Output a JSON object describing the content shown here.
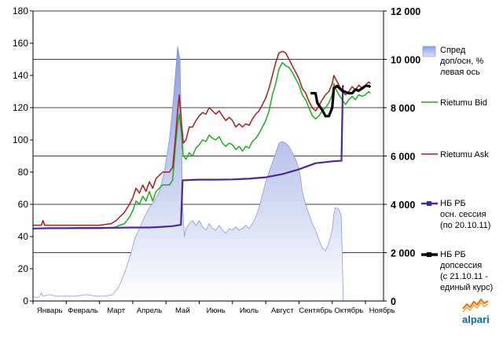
{
  "chart_data": {
    "type": "line",
    "title": "",
    "left_axis": {
      "range": [
        0,
        180
      ],
      "ticks": [
        0,
        20,
        40,
        60,
        80,
        100,
        120,
        140,
        160,
        180
      ]
    },
    "right_axis": {
      "range": [
        0,
        12000
      ],
      "ticks": [
        0,
        2000,
        4000,
        6000,
        8000,
        10000,
        12000
      ],
      "tick_labels": [
        "0",
        "2 000",
        "4 000",
        "6 000",
        "8 000",
        "10 000",
        "12 000"
      ]
    },
    "gridlines": "horizontal at right-axis ticks",
    "months": [
      "Январь",
      "Февраль",
      "Март",
      "Апрель",
      "Май",
      "Июнь",
      "Июль",
      "Август",
      "Сентябрь",
      "Октябрь",
      "Ноябрь"
    ],
    "legend_position": "right",
    "series": [
      {
        "name_lines": [
          "Спред",
          "доп/осн, %",
          "левая ось"
        ],
        "type": "area",
        "axis": "left",
        "color": "#a8b6e8",
        "points": [
          [
            0.0,
            3
          ],
          [
            0.1,
            2
          ],
          [
            0.2,
            3
          ],
          [
            0.25,
            5
          ],
          [
            0.3,
            3
          ],
          [
            0.5,
            4
          ],
          [
            0.7,
            3
          ],
          [
            1.0,
            3
          ],
          [
            1.3,
            3
          ],
          [
            1.6,
            4
          ],
          [
            1.9,
            3
          ],
          [
            2.2,
            3
          ],
          [
            2.4,
            4
          ],
          [
            2.55,
            8
          ],
          [
            2.65,
            12
          ],
          [
            2.8,
            20
          ],
          [
            2.95,
            30
          ],
          [
            3.05,
            38
          ],
          [
            3.2,
            45
          ],
          [
            3.35,
            52
          ],
          [
            3.5,
            58
          ],
          [
            3.65,
            62
          ],
          [
            3.8,
            68
          ],
          [
            3.95,
            80
          ],
          [
            4.1,
            100
          ],
          [
            4.2,
            120
          ],
          [
            4.3,
            145
          ],
          [
            4.35,
            158
          ],
          [
            4.42,
            150
          ],
          [
            4.47,
            100
          ],
          [
            4.5,
            60
          ],
          [
            4.55,
            40
          ],
          [
            4.6,
            45
          ],
          [
            4.7,
            48
          ],
          [
            4.8,
            50
          ],
          [
            4.9,
            47
          ],
          [
            5.0,
            50
          ],
          [
            5.1,
            46
          ],
          [
            5.2,
            44
          ],
          [
            5.3,
            48
          ],
          [
            5.4,
            45
          ],
          [
            5.5,
            44
          ],
          [
            5.6,
            47
          ],
          [
            5.7,
            44
          ],
          [
            5.8,
            42
          ],
          [
            5.9,
            45
          ],
          [
            6.0,
            44
          ],
          [
            6.1,
            46
          ],
          [
            6.2,
            44
          ],
          [
            6.3,
            45
          ],
          [
            6.4,
            47
          ],
          [
            6.5,
            45
          ],
          [
            6.6,
            48
          ],
          [
            6.7,
            52
          ],
          [
            6.8,
            58
          ],
          [
            6.9,
            66
          ],
          [
            7.0,
            74
          ],
          [
            7.1,
            80
          ],
          [
            7.2,
            86
          ],
          [
            7.3,
            92
          ],
          [
            7.4,
            98
          ],
          [
            7.5,
            99
          ],
          [
            7.6,
            98
          ],
          [
            7.7,
            96
          ],
          [
            7.8,
            92
          ],
          [
            7.9,
            88
          ],
          [
            8.0,
            82
          ],
          [
            8.05,
            76
          ],
          [
            8.1,
            68
          ],
          [
            8.2,
            60
          ],
          [
            8.3,
            54
          ],
          [
            8.4,
            48
          ],
          [
            8.5,
            44
          ],
          [
            8.6,
            38
          ],
          [
            8.7,
            33
          ],
          [
            8.8,
            31
          ],
          [
            8.9,
            36
          ],
          [
            9.0,
            44
          ],
          [
            9.05,
            54
          ],
          [
            9.1,
            58
          ],
          [
            9.2,
            57
          ],
          [
            9.27,
            53
          ],
          [
            9.3,
            30
          ],
          [
            9.33,
            0
          ]
        ]
      },
      {
        "name": "Rietumu Bid",
        "type": "line",
        "axis": "left",
        "color": "#22aa22",
        "points": [
          [
            0.0,
            45
          ],
          [
            1.0,
            45
          ],
          [
            2.0,
            45
          ],
          [
            2.35,
            45.5
          ],
          [
            2.5,
            46
          ],
          [
            2.6,
            47
          ],
          [
            2.75,
            48
          ],
          [
            2.9,
            52
          ],
          [
            3.0,
            56
          ],
          [
            3.1,
            62
          ],
          [
            3.2,
            60
          ],
          [
            3.3,
            65
          ],
          [
            3.4,
            62
          ],
          [
            3.5,
            68
          ],
          [
            3.6,
            62
          ],
          [
            3.7,
            68
          ],
          [
            3.8,
            70
          ],
          [
            3.9,
            72
          ],
          [
            4.0,
            72
          ],
          [
            4.1,
            72
          ],
          [
            4.2,
            75
          ],
          [
            4.28,
            95
          ],
          [
            4.35,
            110
          ],
          [
            4.4,
            116
          ],
          [
            4.46,
            105
          ],
          [
            4.52,
            90
          ],
          [
            4.6,
            88
          ],
          [
            4.7,
            92
          ],
          [
            4.8,
            90
          ],
          [
            4.9,
            95
          ],
          [
            5.0,
            97
          ],
          [
            5.1,
            100
          ],
          [
            5.2,
            99
          ],
          [
            5.3,
            103
          ],
          [
            5.4,
            101
          ],
          [
            5.5,
            100
          ],
          [
            5.6,
            102
          ],
          [
            5.7,
            98
          ],
          [
            5.8,
            96
          ],
          [
            5.9,
            98
          ],
          [
            6.0,
            97
          ],
          [
            6.1,
            94
          ],
          [
            6.2,
            96
          ],
          [
            6.3,
            93
          ],
          [
            6.4,
            96
          ],
          [
            6.5,
            95
          ],
          [
            6.6,
            99
          ],
          [
            6.7,
            101
          ],
          [
            6.8,
            104
          ],
          [
            6.9,
            108
          ],
          [
            7.0,
            112
          ],
          [
            7.1,
            118
          ],
          [
            7.2,
            128
          ],
          [
            7.3,
            135
          ],
          [
            7.4,
            144
          ],
          [
            7.5,
            148
          ],
          [
            7.6,
            146
          ],
          [
            7.7,
            145
          ],
          [
            7.8,
            142
          ],
          [
            7.9,
            138
          ],
          [
            8.0,
            134
          ],
          [
            8.1,
            128
          ],
          [
            8.2,
            125
          ],
          [
            8.3,
            120
          ],
          [
            8.4,
            115
          ],
          [
            8.5,
            113
          ],
          [
            8.6,
            115
          ],
          [
            8.7,
            118
          ],
          [
            8.8,
            120
          ],
          [
            8.9,
            123
          ],
          [
            9.0,
            128
          ],
          [
            9.05,
            135
          ],
          [
            9.1,
            132
          ],
          [
            9.2,
            128
          ],
          [
            9.3,
            125
          ],
          [
            9.4,
            122
          ],
          [
            9.5,
            125
          ],
          [
            9.6,
            127
          ],
          [
            9.7,
            125
          ],
          [
            9.8,
            128
          ],
          [
            9.9,
            127
          ],
          [
            10.0,
            128
          ],
          [
            10.1,
            130
          ],
          [
            10.15,
            129
          ]
        ]
      },
      {
        "name": "Rietumu Ask",
        "type": "line",
        "axis": "left",
        "color": "#aa1e1e",
        "points": [
          [
            0.0,
            47
          ],
          [
            0.25,
            47
          ],
          [
            0.3,
            50
          ],
          [
            0.35,
            47
          ],
          [
            1.0,
            47
          ],
          [
            2.0,
            47
          ],
          [
            2.35,
            48
          ],
          [
            2.5,
            50
          ],
          [
            2.6,
            52
          ],
          [
            2.75,
            55
          ],
          [
            2.9,
            60
          ],
          [
            3.0,
            64
          ],
          [
            3.1,
            70
          ],
          [
            3.2,
            67
          ],
          [
            3.3,
            72
          ],
          [
            3.4,
            68
          ],
          [
            3.5,
            74
          ],
          [
            3.6,
            70
          ],
          [
            3.7,
            76
          ],
          [
            3.8,
            78
          ],
          [
            3.9,
            80
          ],
          [
            4.0,
            80
          ],
          [
            4.1,
            80
          ],
          [
            4.2,
            83
          ],
          [
            4.28,
            100
          ],
          [
            4.35,
            118
          ],
          [
            4.4,
            128
          ],
          [
            4.46,
            112
          ],
          [
            4.52,
            98
          ],
          [
            4.6,
            100
          ],
          [
            4.7,
            108
          ],
          [
            4.8,
            108
          ],
          [
            4.9,
            112
          ],
          [
            5.0,
            115
          ],
          [
            5.1,
            117
          ],
          [
            5.2,
            116
          ],
          [
            5.3,
            120
          ],
          [
            5.4,
            118
          ],
          [
            5.5,
            116
          ],
          [
            5.6,
            118
          ],
          [
            5.7,
            115
          ],
          [
            5.8,
            112
          ],
          [
            5.9,
            114
          ],
          [
            6.0,
            112
          ],
          [
            6.1,
            108
          ],
          [
            6.2,
            110
          ],
          [
            6.3,
            108
          ],
          [
            6.4,
            110
          ],
          [
            6.5,
            109
          ],
          [
            6.6,
            113
          ],
          [
            6.7,
            116
          ],
          [
            6.8,
            118
          ],
          [
            6.9,
            122
          ],
          [
            7.0,
            126
          ],
          [
            7.1,
            132
          ],
          [
            7.2,
            140
          ],
          [
            7.3,
            148
          ],
          [
            7.4,
            154
          ],
          [
            7.5,
            155
          ],
          [
            7.6,
            154
          ],
          [
            7.7,
            150
          ],
          [
            7.8,
            146
          ],
          [
            7.9,
            142
          ],
          [
            8.0,
            138
          ],
          [
            8.1,
            132
          ],
          [
            8.2,
            129
          ],
          [
            8.3,
            124
          ],
          [
            8.4,
            120
          ],
          [
            8.5,
            118
          ],
          [
            8.6,
            121
          ],
          [
            8.7,
            125
          ],
          [
            8.8,
            128
          ],
          [
            8.9,
            130
          ],
          [
            9.0,
            135
          ],
          [
            9.05,
            140
          ],
          [
            9.1,
            138
          ],
          [
            9.2,
            134
          ],
          [
            9.3,
            130
          ],
          [
            9.4,
            128
          ],
          [
            9.5,
            130
          ],
          [
            9.6,
            133
          ],
          [
            9.7,
            131
          ],
          [
            9.8,
            134
          ],
          [
            9.9,
            132
          ],
          [
            10.0,
            134
          ],
          [
            10.1,
            136
          ],
          [
            10.15,
            135
          ]
        ]
      },
      {
        "name_lines": [
          "НБ РБ",
          "осн. сессия",
          "(по 20.10.11)"
        ],
        "type": "line",
        "axis": "right",
        "color": "#4b2a8c",
        "points": [
          [
            0.0,
            3000
          ],
          [
            0.5,
            3010
          ],
          [
            1.0,
            3015
          ],
          [
            1.5,
            3020
          ],
          [
            2.0,
            3025
          ],
          [
            2.5,
            3030
          ],
          [
            3.0,
            3040
          ],
          [
            3.5,
            3040
          ],
          [
            3.8,
            3060
          ],
          [
            4.0,
            3080
          ],
          [
            4.2,
            3100
          ],
          [
            4.45,
            3150
          ],
          [
            4.5,
            5000
          ],
          [
            4.6,
            5000
          ],
          [
            4.8,
            5010
          ],
          [
            5.0,
            5020
          ],
          [
            5.5,
            5020
          ],
          [
            6.0,
            5030
          ],
          [
            6.5,
            5060
          ],
          [
            7.0,
            5120
          ],
          [
            7.5,
            5250
          ],
          [
            8.0,
            5450
          ],
          [
            8.5,
            5700
          ],
          [
            9.0,
            5780
          ],
          [
            9.2,
            5800
          ],
          [
            9.28,
            5800
          ],
          [
            9.32,
            8900
          ],
          [
            9.35,
            8900
          ]
        ]
      },
      {
        "name_lines": [
          "НБ РБ",
          "допсессия",
          "(с 21.10.11 -",
          "единый курс)"
        ],
        "type": "line",
        "axis": "right",
        "color": "#000000",
        "points": [
          [
            8.35,
            8600
          ],
          [
            8.5,
            8600
          ],
          [
            8.55,
            8200
          ],
          [
            8.7,
            7900
          ],
          [
            8.8,
            7650
          ],
          [
            8.9,
            7650
          ],
          [
            9.0,
            8000
          ],
          [
            9.05,
            8800
          ],
          [
            9.15,
            8900
          ],
          [
            9.3,
            8700
          ],
          [
            9.5,
            8600
          ],
          [
            9.6,
            8600
          ],
          [
            9.7,
            8750
          ],
          [
            9.8,
            8700
          ],
          [
            9.9,
            8800
          ],
          [
            10.0,
            8900
          ],
          [
            10.1,
            8900
          ],
          [
            10.15,
            8850
          ]
        ]
      }
    ]
  },
  "logo": {
    "text": "alpari"
  }
}
